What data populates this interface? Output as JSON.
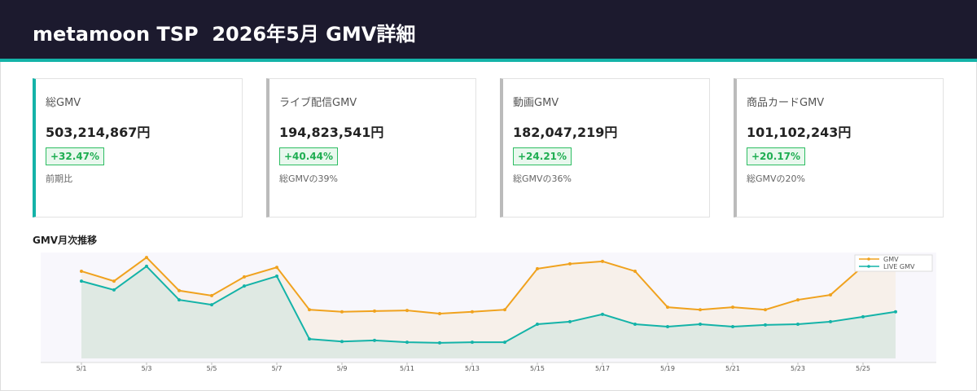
{
  "header": {
    "title": "metamoon TSP  2026年5月 GMV詳細"
  },
  "cards": [
    {
      "label": "総GMV",
      "value": "503,214,867円",
      "change": "+32.47%",
      "note": "前期比"
    },
    {
      "label": "ライブ配信GMV",
      "value": "194,823,541円",
      "change": "+40.44%",
      "note": "総GMVの39%"
    },
    {
      "label": "動画GMV",
      "value": "182,047,219円",
      "change": "+24.21%",
      "note": "総GMVの36%"
    },
    {
      "label": "商品カードGMV",
      "value": "101,102,243円",
      "change": "+20.17%",
      "note": "総GMVの20%"
    }
  ],
  "chart_data": {
    "type": "line",
    "title": "GMV月次推移",
    "categories": [
      "5/1",
      null,
      "5/3",
      null,
      "5/5",
      null,
      "5/7",
      null,
      "5/9",
      null,
      "5/11",
      null,
      "5/13",
      null,
      "5/15",
      null,
      "5/17",
      null,
      "5/19",
      null,
      "5/21",
      null,
      "5/23",
      null,
      "5/25",
      null
    ],
    "series": [
      {
        "name": "GMV",
        "color": "#f0a21e",
        "values": [
          24.7,
          21.9,
          28.6,
          19.2,
          17.8,
          23.1,
          25.8,
          13.8,
          13.2,
          13.4,
          13.6,
          12.7,
          13.2,
          13.8,
          25.4,
          26.8,
          27.5,
          24.7,
          14.5,
          13.8,
          14.5,
          13.8,
          16.6,
          18.0,
          26.1,
          28.2
        ]
      },
      {
        "name": "LIVE GMV",
        "color": "#14b3a8",
        "values": [
          21.9,
          19.4,
          26.1,
          16.6,
          15.2,
          20.5,
          23.3,
          5.5,
          4.8,
          5.1,
          4.6,
          4.4,
          4.6,
          4.6,
          9.7,
          10.4,
          12.5,
          9.7,
          9.0,
          9.7,
          9.0,
          9.5,
          9.7,
          10.4,
          11.8,
          13.2
        ]
      }
    ],
    "ylim": [
      0,
      30
    ],
    "legend": "upper right",
    "area": true
  }
}
